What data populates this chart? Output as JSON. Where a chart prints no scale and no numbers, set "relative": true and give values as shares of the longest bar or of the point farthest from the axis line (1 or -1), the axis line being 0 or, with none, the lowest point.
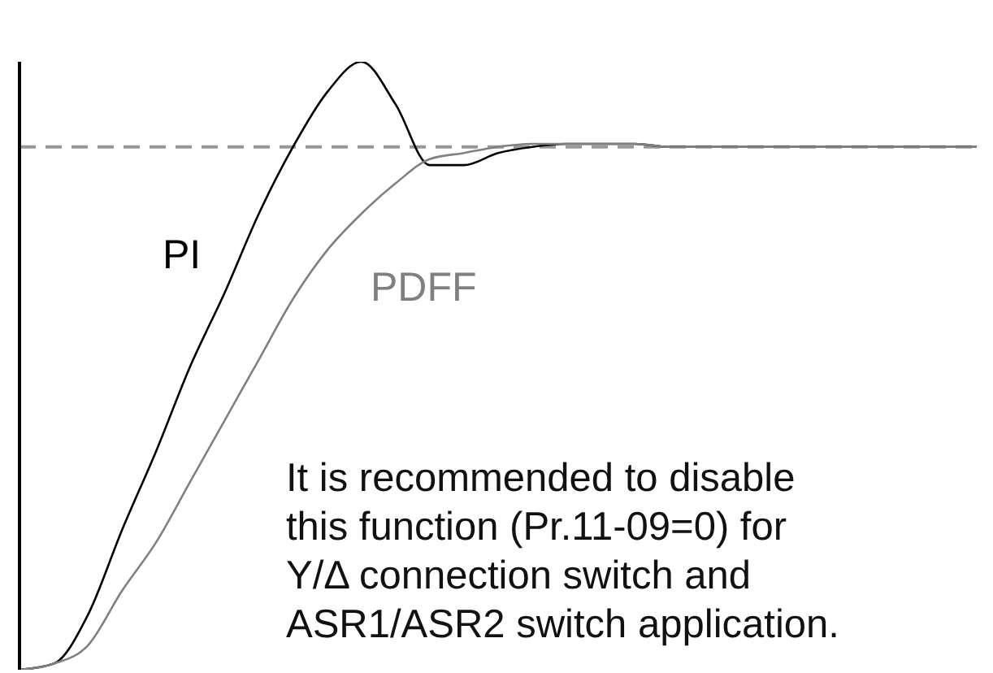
{
  "chart_data": {
    "type": "line",
    "relative": true,
    "categories": [
      null,
      null,
      null,
      null,
      null,
      null,
      null,
      null,
      null,
      null,
      null,
      null,
      null,
      null,
      null,
      null,
      null,
      null,
      null,
      null,
      null,
      null,
      null,
      null,
      null,
      null,
      null,
      null,
      null
    ],
    "series": [
      {
        "name": "PI",
        "color": "#000000",
        "values": [
          0,
          0.01,
          0.09,
          0.23,
          0.36,
          0.5,
          0.62,
          0.75,
          0.86,
          0.95,
          1,
          0.93,
          0.83,
          0.83,
          0.85,
          0.86,
          0.865,
          0.865,
          0.865,
          0.86,
          0.86,
          0.86,
          0.86,
          0.86,
          0.86,
          0.86,
          0.86,
          0.86,
          0.86
        ]
      },
      {
        "name": "PDFF",
        "color": "#808080",
        "values": [
          0,
          0.01,
          0.04,
          0.13,
          0.21,
          0.31,
          0.41,
          0.51,
          0.61,
          0.69,
          0.75,
          0.8,
          0.84,
          0.85,
          0.86,
          0.865,
          0.865,
          0.865,
          0.865,
          0.86,
          0.86,
          0.86,
          0.86,
          0.86,
          0.86,
          0.86,
          0.86,
          0.86,
          0.86
        ]
      }
    ],
    "ref_lines": [
      {
        "axis": "y",
        "value": 0.86,
        "color": "#999999",
        "line_style": "dashed"
      }
    ],
    "annotations": [
      "It is recommended to disable\nthis function (Pr.11-09=0) for\nY/Δ connection switch and\nASR1/ASR2 switch application."
    ],
    "marker": "none"
  }
}
